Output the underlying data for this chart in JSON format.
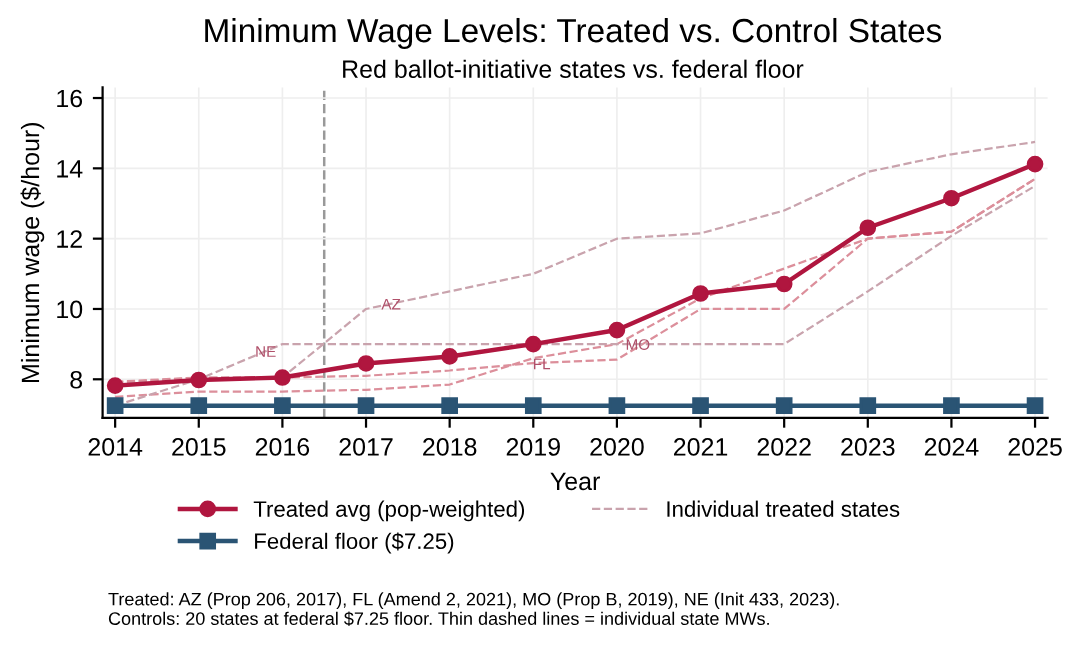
{
  "chart_data": {
    "type": "line",
    "title": "Minimum Wage Levels: Treated vs. Control States",
    "subtitle": "Red ballot-initiative states vs. federal floor",
    "xlabel": "Year",
    "ylabel": "Minimum wage ($/hour)",
    "x": [
      2014,
      2015,
      2016,
      2017,
      2018,
      2019,
      2020,
      2021,
      2022,
      2023,
      2024,
      2025
    ],
    "series": [
      {
        "name": "Individual treated states",
        "color": "#c9a3ad",
        "line_style": "dashed",
        "marker": "none",
        "values": [
          7.9,
          8.05,
          8.05,
          10.0,
          10.5,
          11.0,
          12.0,
          12.15,
          12.8,
          13.9,
          14.4,
          14.75
        ]
      },
      {
        "color": "#dc8f9b",
        "line_style": "dashed",
        "marker": "none",
        "values": [
          7.93,
          8.05,
          8.05,
          8.1,
          8.25,
          8.46,
          8.56,
          10.0,
          10.0,
          12.0,
          12.2,
          13.7
        ]
      },
      {
        "color": "#dc8f9b",
        "line_style": "dashed",
        "marker": "none",
        "values": [
          7.5,
          7.65,
          7.65,
          7.7,
          7.85,
          8.6,
          9.0,
          10.3,
          11.15,
          12.0,
          12.2,
          13.7
        ]
      },
      {
        "color": "#c9a3ad",
        "line_style": "dashed",
        "marker": "none",
        "values": [
          7.25,
          8.0,
          9.0,
          9.0,
          9.0,
          9.0,
          9.0,
          9.0,
          9.0,
          10.5,
          12.08,
          13.5
        ]
      },
      {
        "name": "Treated avg (pop-weighted)",
        "color": "#b0163f",
        "line_style": "solid",
        "marker": "circle",
        "values": [
          7.82,
          7.98,
          8.05,
          8.45,
          8.65,
          9.0,
          9.4,
          10.44,
          10.71,
          12.31,
          13.15,
          14.12
        ]
      },
      {
        "name": "Federal floor ($7.25)",
        "color": "#2a5474",
        "line_style": "solid",
        "marker": "square",
        "values": [
          7.25,
          7.25,
          7.25,
          7.25,
          7.25,
          7.25,
          7.25,
          7.25,
          7.25,
          7.25,
          7.25,
          7.25
        ]
      }
    ],
    "xlim": [
      2013.85,
      2025.15
    ],
    "xticks": [
      2014,
      2015,
      2016,
      2017,
      2018,
      2019,
      2020,
      2021,
      2022,
      2023,
      2024,
      2025
    ],
    "ylim": [
      6.9,
      16.3
    ],
    "yticks": [
      8,
      10,
      12,
      14,
      16
    ],
    "grid": true,
    "legend": "bottom",
    "ref_lines": [
      {
        "axis": "x",
        "value": 2016.5,
        "color": "#999999",
        "line_style": "dashed"
      }
    ],
    "annotations": [
      {
        "text": "AZ",
        "x": 2017.3,
        "y": 10.1
      },
      {
        "text": "NE",
        "x": 2015.8,
        "y": 8.75
      },
      {
        "text": "FL",
        "x": 2019.1,
        "y": 8.4
      },
      {
        "text": "MO",
        "x": 2020.25,
        "y": 8.95
      },
      "Treated: AZ (Prop 206, 2017), FL (Amend 2, 2021), MO (Prop B, 2019), NE (Init 433, 2023).\nControls: 20 states at federal $7.25 floor. Thin dashed lines = individual state MWs."
    ]
  }
}
